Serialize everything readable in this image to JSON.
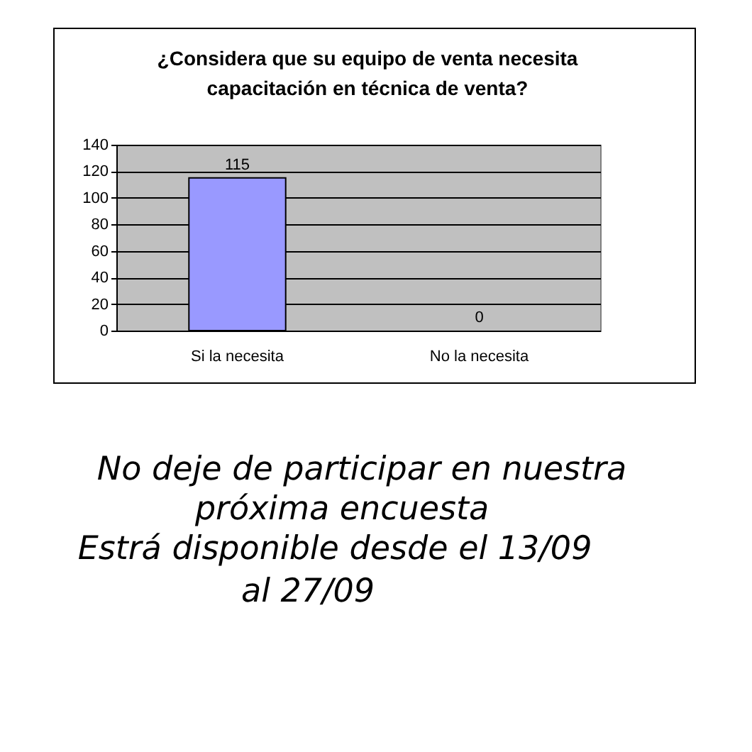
{
  "chart_data": {
    "type": "bar",
    "title": "¿Considera que su equipo de venta necesita capacitación en técnica de venta?",
    "categories": [
      "Si la necesita",
      "No la necesita"
    ],
    "values": [
      115,
      0
    ],
    "color": "#9999ff",
    "ylim": [
      0,
      140
    ],
    "yticks": [
      0,
      20,
      40,
      60,
      80,
      100,
      120,
      140
    ],
    "grid": "y",
    "data_labels": true,
    "annotations": [
      "No deje de participar en nuestra",
      "próxima encuesta",
      "Estrá disponible desde el 13/09",
      "al 27/09"
    ]
  }
}
